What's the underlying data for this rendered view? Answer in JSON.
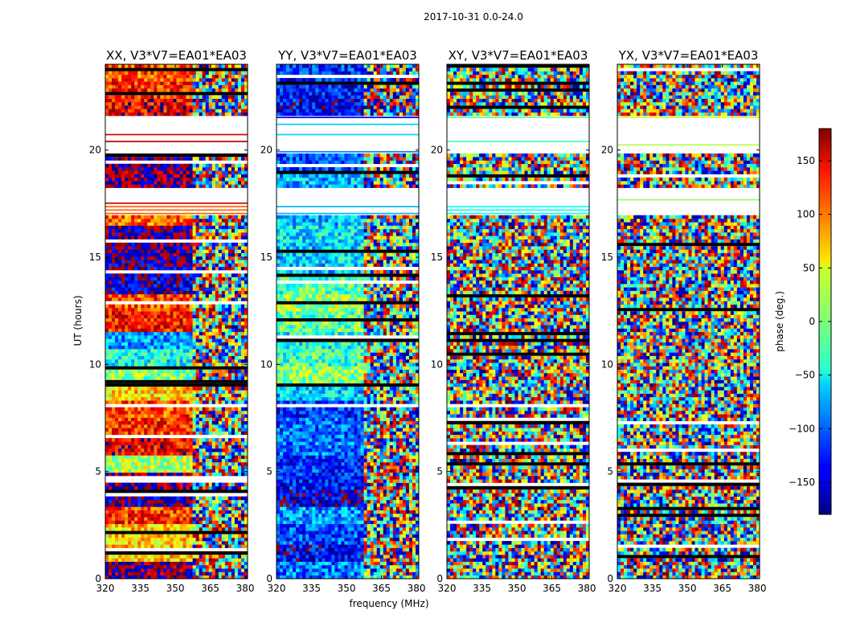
{
  "figure": {
    "suptitle": "2017-10-31 0.0-24.0",
    "xlabel": "frequency (MHz)",
    "ylabel": "UT (hours)"
  },
  "colorbar": {
    "label": "phase (deg.)",
    "range": [
      -180,
      180
    ],
    "ticks": [
      150,
      100,
      50,
      0,
      -50,
      -100,
      -150
    ],
    "tick_labels": [
      "150",
      "100",
      "50",
      "0",
      "−50",
      "−100",
      "−150"
    ],
    "colormap": "jet"
  },
  "chart_data": [
    {
      "type": "heatmap",
      "title": "XX, V3*V7=EA01*EA03",
      "xlim": [
        320,
        381
      ],
      "ylim": [
        0,
        24
      ],
      "xticks": [
        320,
        335,
        350,
        365,
        380
      ],
      "yticks": [
        0,
        5,
        10,
        15,
        20
      ],
      "band_phases": [
        180,
        60,
        60,
        120,
        -160,
        -180,
        20,
        140,
        120,
        110,
        60,
        0,
        -40,
        -80,
        130,
        110,
        -150,
        -160,
        -170,
        -170,
        100,
        150,
        -180,
        -170,
        160,
        150,
        140,
        120,
        110
      ]
    },
    {
      "type": "heatmap",
      "title": "YY, V3*V7=EA01*EA03",
      "xlim": [
        320,
        381
      ],
      "ylim": [
        0,
        24
      ],
      "xticks": [
        320,
        335,
        350,
        365,
        380
      ],
      "yticks": [
        0,
        5,
        10,
        15,
        20
      ],
      "band_phases": [
        -90,
        -140,
        -110,
        -80,
        -150,
        -130,
        -120,
        -90,
        -100,
        -120,
        -60,
        0,
        -20,
        -40,
        -10,
        10,
        -20,
        -60,
        -60,
        -50,
        -70,
        -130,
        -70,
        -110,
        -90,
        -60,
        -140,
        -130,
        -120
      ]
    },
    {
      "type": "heatmap",
      "title": "XY, V3*V7=EA01*EA03",
      "xlim": [
        320,
        381
      ],
      "ylim": [
        0,
        24
      ],
      "xticks": [
        320,
        335,
        350,
        365,
        380
      ],
      "yticks": [
        0,
        5,
        10,
        15,
        20
      ],
      "band_phases": [
        -40,
        -60,
        20,
        -20,
        40,
        -30,
        30,
        -50,
        10,
        20,
        -10,
        0,
        -20,
        40,
        20,
        10,
        -30,
        30,
        40,
        60,
        -40,
        30,
        0,
        20,
        -20,
        10,
        -10,
        40,
        20
      ]
    },
    {
      "type": "heatmap",
      "title": "YX, V3*V7=EA01*EA03",
      "xlim": [
        320,
        381
      ],
      "ylim": [
        0,
        24
      ],
      "xticks": [
        320,
        335,
        350,
        365,
        380
      ],
      "yticks": [
        0,
        5,
        10,
        15,
        20
      ],
      "band_phases": [
        20,
        -30,
        40,
        0,
        -40,
        -60,
        30,
        -20,
        10,
        -10,
        20,
        0,
        30,
        -20,
        40,
        -30,
        20,
        10,
        -40,
        60,
        -20,
        10,
        40,
        -30,
        20,
        -10,
        30,
        0,
        -20
      ]
    }
  ]
}
